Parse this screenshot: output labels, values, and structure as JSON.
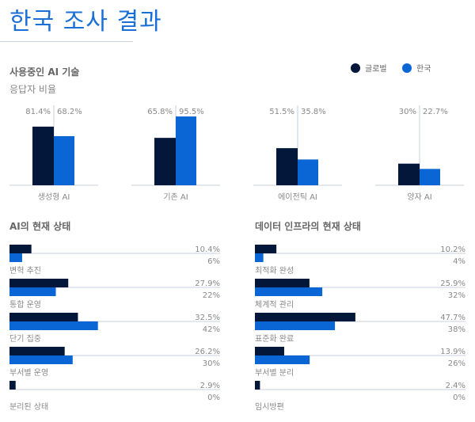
{
  "page_title": "한국 조사 결과",
  "colors": {
    "global": "#03173a",
    "korea": "#0a66d4",
    "title": "#1a6fd6"
  },
  "legend": [
    {
      "label": "글로벌"
    },
    {
      "label": "한국"
    }
  ],
  "chart_data": [
    {
      "type": "bar",
      "title": "사용중인 AI 기술",
      "subtitle": "응답자 비율",
      "categories": [
        "생성형 AI",
        "기존 AI",
        "에이전틱 AI",
        "양자 AI"
      ],
      "series": [
        {
          "name": "글로벌",
          "values": [
            81.4,
            65.8,
            51.5,
            30
          ],
          "labels": [
            "81.4%",
            "65.8%",
            "51.5%",
            "30%"
          ]
        },
        {
          "name": "한국",
          "values": [
            68.2,
            95.5,
            35.8,
            22.7
          ],
          "labels": [
            "68.2%",
            "95.5%",
            "35.8%",
            "22.7%"
          ]
        }
      ],
      "ylim": [
        0,
        100
      ]
    },
    {
      "type": "bar",
      "orientation": "horizontal",
      "title": "AI의 현재 상태",
      "categories": [
        "변혁 추진",
        "통합 운영",
        "단기 집중",
        "부서별 운영",
        "분리된 상태"
      ],
      "series": [
        {
          "name": "글로벌",
          "values": [
            10.4,
            27.9,
            32.5,
            26.2,
            2.9
          ],
          "labels": [
            "10.4%",
            "27.9%",
            "32.5%",
            "26.2%",
            "2.9%"
          ]
        },
        {
          "name": "한국",
          "values": [
            6,
            22,
            42,
            30,
            0
          ],
          "labels": [
            "6%",
            "22%",
            "42%",
            "30%",
            "0%"
          ]
        }
      ],
      "xlim": [
        0,
        100
      ]
    },
    {
      "type": "bar",
      "orientation": "horizontal",
      "title": "데이터 인프라의 현재 상태",
      "categories": [
        "최적화 완성",
        "체계적 관리",
        "표준화 완료",
        "부서별 분리",
        "임시방편"
      ],
      "series": [
        {
          "name": "글로벌",
          "values": [
            10.2,
            25.9,
            47.7,
            13.9,
            2.4
          ],
          "labels": [
            "10.2%",
            "25.9%",
            "47.7%",
            "13.9%",
            "2.4%"
          ]
        },
        {
          "name": "한국",
          "values": [
            4,
            32,
            38,
            26,
            0
          ],
          "labels": [
            "4%",
            "32%",
            "38%",
            "26%",
            "0%"
          ]
        }
      ],
      "xlim": [
        0,
        100
      ]
    }
  ]
}
